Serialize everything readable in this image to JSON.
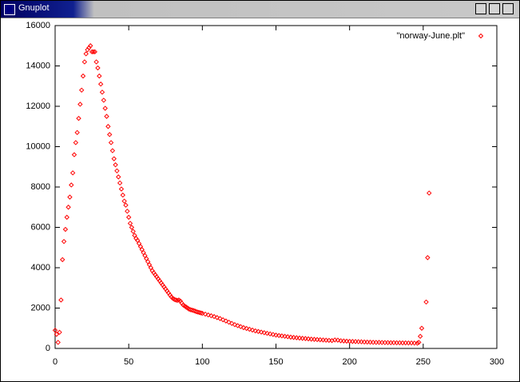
{
  "window": {
    "title": "Gnuplot"
  },
  "chart_data": {
    "type": "scatter",
    "x": [
      0,
      1,
      2,
      3,
      4,
      5,
      6,
      7,
      8,
      9,
      10,
      11,
      12,
      13,
      14,
      15,
      16,
      17,
      18,
      19,
      20,
      21,
      22,
      23,
      24,
      25,
      26,
      27,
      28,
      29,
      30,
      31,
      32,
      33,
      34,
      35,
      36,
      37,
      38,
      39,
      40,
      41,
      42,
      43,
      44,
      45,
      46,
      47,
      48,
      49,
      50,
      51,
      52,
      53,
      54,
      55,
      56,
      57,
      58,
      59,
      60,
      61,
      62,
      63,
      64,
      65,
      66,
      67,
      68,
      69,
      70,
      71,
      72,
      73,
      74,
      75,
      76,
      77,
      78,
      79,
      80,
      81,
      82,
      83,
      84,
      85,
      86,
      87,
      88,
      89,
      90,
      91,
      92,
      93,
      94,
      95,
      96,
      97,
      98,
      99,
      100,
      102,
      104,
      106,
      108,
      110,
      112,
      114,
      116,
      118,
      120,
      122,
      124,
      126,
      128,
      130,
      132,
      134,
      136,
      138,
      140,
      142,
      144,
      146,
      148,
      150,
      152,
      154,
      156,
      158,
      160,
      162,
      164,
      166,
      168,
      170,
      172,
      174,
      176,
      178,
      180,
      182,
      184,
      186,
      188,
      190,
      192,
      194,
      196,
      198,
      200,
      202,
      204,
      206,
      208,
      210,
      212,
      214,
      216,
      218,
      220,
      222,
      224,
      226,
      228,
      230,
      232,
      234,
      236,
      238,
      240,
      242,
      244,
      246,
      247,
      248,
      249,
      252,
      253,
      254
    ],
    "series": [
      {
        "name": "\"norway-June.plt\"",
        "color": "#ff0000",
        "values": [
          900,
          700,
          300,
          800,
          2400,
          4400,
          5300,
          5900,
          6500,
          7000,
          7500,
          8100,
          8700,
          9600,
          10200,
          10700,
          11400,
          12100,
          12800,
          13500,
          14200,
          14600,
          14800,
          14900,
          15000,
          14700,
          14700,
          14700,
          14200,
          13900,
          13500,
          13100,
          12700,
          12300,
          11900,
          11500,
          11000,
          10600,
          10200,
          9800,
          9400,
          9100,
          8800,
          8500,
          8200,
          7900,
          7600,
          7300,
          7100,
          6800,
          6500,
          6200,
          6000,
          5800,
          5600,
          5450,
          5350,
          5200,
          5050,
          4900,
          4750,
          4600,
          4450,
          4300,
          4150,
          4000,
          3850,
          3750,
          3650,
          3550,
          3450,
          3350,
          3250,
          3150,
          3050,
          2950,
          2850,
          2750,
          2650,
          2550,
          2480,
          2430,
          2400,
          2380,
          2400,
          2350,
          2250,
          2150,
          2100,
          2050,
          2000,
          1950,
          1920,
          1900,
          1880,
          1850,
          1820,
          1800,
          1780,
          1760,
          1740,
          1700,
          1660,
          1620,
          1580,
          1530,
          1480,
          1420,
          1360,
          1300,
          1240,
          1180,
          1130,
          1080,
          1030,
          990,
          950,
          910,
          870,
          840,
          810,
          780,
          750,
          720,
          690,
          660,
          640,
          620,
          600,
          580,
          560,
          545,
          530,
          515,
          500,
          490,
          475,
          460,
          450,
          440,
          430,
          420,
          410,
          400,
          390,
          420,
          410,
          380,
          370,
          360,
          350,
          345,
          340,
          335,
          330,
          320,
          315,
          310,
          305,
          300,
          300,
          295,
          290,
          290,
          285,
          285,
          280,
          280,
          275,
          275,
          270,
          270,
          265,
          260,
          300,
          600,
          1000,
          2300,
          4500,
          7700
        ]
      }
    ],
    "xlim": [
      0,
      300
    ],
    "xticks": [
      0,
      50,
      100,
      150,
      200,
      250,
      300
    ],
    "ylim": [
      0,
      16000
    ],
    "yticks": [
      0,
      2000,
      4000,
      6000,
      8000,
      10000,
      12000,
      14000,
      16000
    ],
    "grid": false,
    "legend": "top-right"
  }
}
